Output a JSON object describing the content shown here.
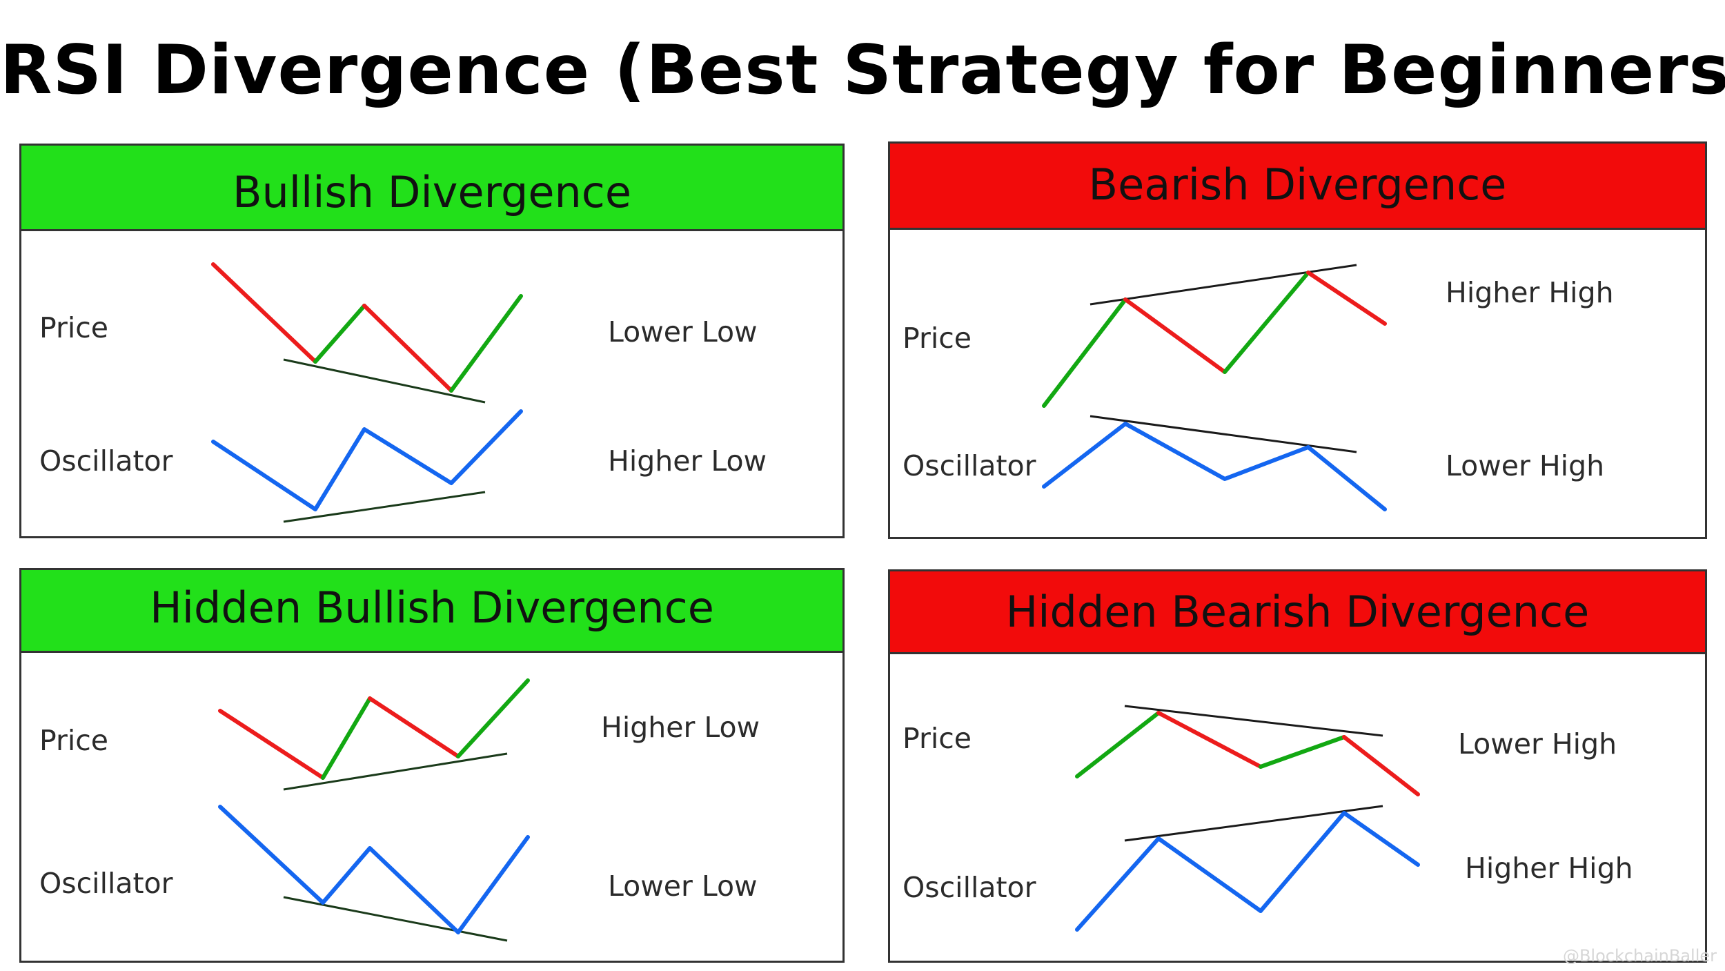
{
  "title": "RSI Divergence (Best Strategy for Beginners)",
  "colors": {
    "bullish_header": "#22e01a",
    "bearish_header": "#f20b0b",
    "price_up": "#12a812",
    "price_down": "#ec1c1c",
    "oscillator": "#1466f0",
    "trendline": "#1a3a1a"
  },
  "panels": [
    {
      "id": "bullish",
      "header": "Bullish Divergence",
      "price_label": "Price",
      "oscillator_label": "Oscillator",
      "price_result": "Lower Low",
      "oscillator_result": "Higher Low"
    },
    {
      "id": "bearish",
      "header": "Bearish Divergence",
      "price_label": "Price",
      "oscillator_label": "Oscillator",
      "price_result": "Higher High",
      "oscillator_result": "Lower High"
    },
    {
      "id": "hidden-bullish",
      "header": "Hidden Bullish Divergence",
      "price_label": "Price",
      "oscillator_label": "Oscillator",
      "price_result": "Higher Low",
      "oscillator_result": "Lower Low"
    },
    {
      "id": "hidden-bearish",
      "header": "Hidden Bearish Divergence",
      "price_label": "Price",
      "oscillator_label": "Oscillator",
      "price_result": "Lower High",
      "oscillator_result": "Higher High"
    }
  ],
  "watermark": "@BlockchainBaller"
}
